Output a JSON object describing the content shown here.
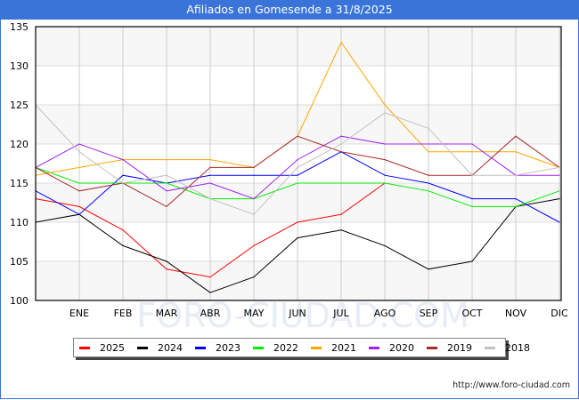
{
  "header": {
    "title": "Afiliados en Gomesende a 31/8/2025"
  },
  "footer": {
    "url": "http://www.foro-ciudad.com"
  },
  "watermark": "FORO-CIUDAD.COM",
  "chart_data": {
    "type": "line",
    "title": "Afiliados en Gomesende a 31/8/2025",
    "xlabel": "",
    "ylabel": "",
    "categories": [
      "",
      "ENE",
      "FEB",
      "MAR",
      "ABR",
      "MAY",
      "JUN",
      "JUL",
      "AGO",
      "SEP",
      "OCT",
      "NOV",
      "DIC"
    ],
    "ylim": [
      100,
      135
    ],
    "yticks": [
      100,
      105,
      110,
      115,
      120,
      125,
      130,
      135
    ],
    "grid": true,
    "legend_position": "bottom",
    "series": [
      {
        "name": "2025",
        "color": "#ff0000",
        "values": [
          113,
          112,
          109,
          104,
          103,
          107,
          110,
          111,
          115,
          null,
          null,
          null,
          null
        ]
      },
      {
        "name": "2024",
        "color": "#000000",
        "values": [
          110,
          111,
          107,
          105,
          101,
          103,
          108,
          109,
          107,
          104,
          105,
          112,
          113
        ]
      },
      {
        "name": "2023",
        "color": "#0000ff",
        "values": [
          114,
          111,
          116,
          115,
          116,
          116,
          116,
          119,
          116,
          115,
          113,
          113,
          110
        ]
      },
      {
        "name": "2022",
        "color": "#00ee00",
        "values": [
          117,
          115,
          115,
          115,
          113,
          113,
          115,
          115,
          115,
          114,
          112,
          112,
          114
        ]
      },
      {
        "name": "2021",
        "color": "#ffa500",
        "values": [
          116,
          117,
          118,
          118,
          118,
          117,
          121,
          133,
          125,
          119,
          119,
          119,
          117
        ]
      },
      {
        "name": "2020",
        "color": "#a020f0",
        "values": [
          117,
          120,
          118,
          114,
          115,
          113,
          118,
          121,
          120,
          120,
          120,
          116,
          116
        ]
      },
      {
        "name": "2019",
        "color": "#a52a2a",
        "values": [
          117,
          114,
          115,
          112,
          117,
          117,
          121,
          119,
          118,
          116,
          116,
          121,
          117
        ]
      },
      {
        "name": "2018",
        "color": "#c0c0c0",
        "values": [
          125,
          119,
          115,
          116,
          113,
          111,
          117,
          120,
          124,
          122,
          116,
          116,
          117
        ]
      }
    ]
  }
}
